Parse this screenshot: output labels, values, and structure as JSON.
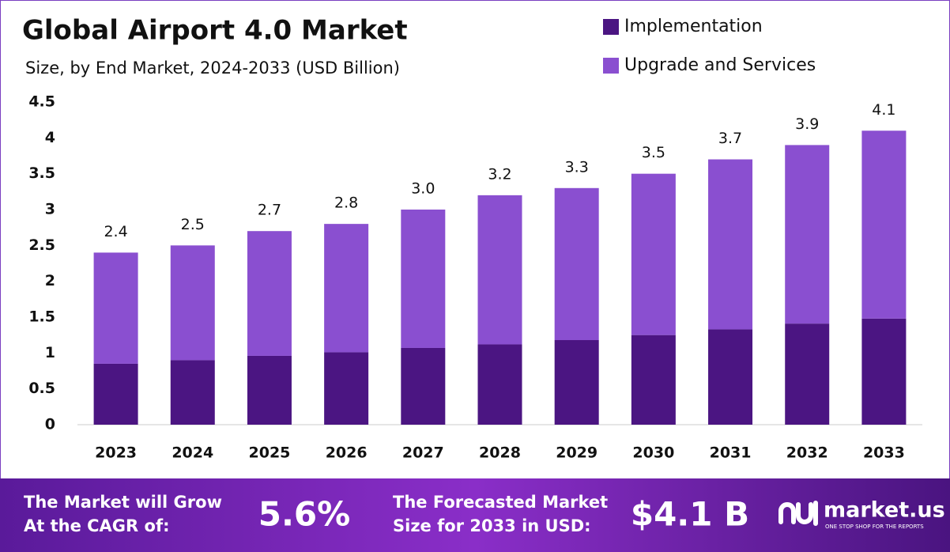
{
  "chart_data": {
    "type": "stacked_bar",
    "title": "Global Airport 4.0 Market",
    "subtitle": "Size, by End Market, 2024-2033 (USD Billion)",
    "categories": [
      "2023",
      "2024",
      "2025",
      "2026",
      "2027",
      "2028",
      "2029",
      "2030",
      "2031",
      "2032",
      "2033"
    ],
    "series": [
      {
        "name": "Implementation",
        "color": "#4b1582",
        "values": [
          0.85,
          0.9,
          0.96,
          1.01,
          1.07,
          1.12,
          1.18,
          1.25,
          1.33,
          1.41,
          1.48
        ]
      },
      {
        "name": "Upgrade and Services",
        "color": "#8a4fd0",
        "values": [
          1.55,
          1.6,
          1.74,
          1.79,
          1.93,
          2.08,
          2.12,
          2.25,
          2.37,
          2.49,
          2.62
        ]
      }
    ],
    "totals": {
      "values": [
        2.4,
        2.5,
        2.7,
        2.8,
        3.0,
        3.2,
        3.3,
        3.5,
        3.7,
        3.9,
        4.1
      ],
      "value_labels": [
        "2.4",
        "2.5",
        "2.7",
        "2.8",
        "3.0",
        "3.2",
        "3.3",
        "3.5",
        "3.7",
        "3.9",
        "4.1"
      ]
    },
    "ylim": [
      0,
      4.5
    ],
    "yticks": [
      0,
      0.5,
      1,
      1.5,
      2,
      2.5,
      3,
      3.5,
      4,
      4.5
    ],
    "grid": false
  },
  "footer": {
    "cagr_text": [
      "The Market will Grow",
      "At the CAGR of:"
    ],
    "cagr_value": "5.6%",
    "forecast_text": [
      "The Forecasted Market",
      "Size for 2033 in USD:"
    ],
    "forecast_value": "$4.1 B",
    "brand": "market.us",
    "tagline": "ONE STOP SHOP FOR THE REPORTS"
  }
}
